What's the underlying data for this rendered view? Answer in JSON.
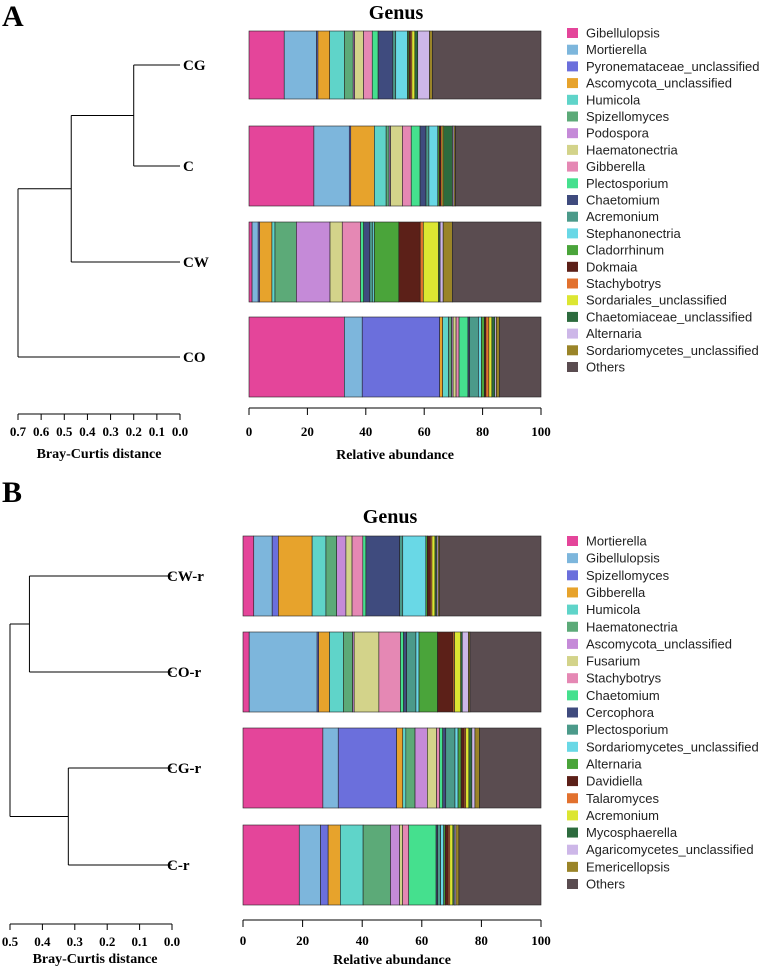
{
  "chart_data": [
    {
      "panel": "A",
      "type": "bar",
      "orientation": "horizontal",
      "stacked": true,
      "title": "Genus",
      "xlabel": "Relative abundance",
      "xlim": [
        0,
        100
      ],
      "xticks": [
        "0",
        "20",
        "40",
        "60",
        "80",
        "100"
      ],
      "dendrogram": {
        "xlabel": "Bray-Curtis distance",
        "ticks": [
          "0.7",
          "0.6",
          "0.5",
          "0.4",
          "0.3",
          "0.2",
          "0.1",
          "0.0"
        ],
        "merges": [
          {
            "left": "CG",
            "right": "C",
            "height": 0.2
          },
          {
            "left": "CG+C",
            "right": "CW",
            "height": 0.47
          },
          {
            "left": "CG+C+CW",
            "right": "CO",
            "height": 0.7
          }
        ]
      },
      "samples": [
        "CG",
        "C",
        "CW",
        "CO"
      ],
      "legend": [
        {
          "name": "Gibellulopsis",
          "color": "#e4459a"
        },
        {
          "name": "Mortierella",
          "color": "#7db6dc"
        },
        {
          "name": "Pyronemataceae_unclassified",
          "color": "#6b6fdc"
        },
        {
          "name": "Ascomycota_unclassified",
          "color": "#e7a32c"
        },
        {
          "name": "Humicola",
          "color": "#5fd4c9"
        },
        {
          "name": "Spizellomyces",
          "color": "#5caa78"
        },
        {
          "name": "Podospora",
          "color": "#c58ad8"
        },
        {
          "name": "Haematonectria",
          "color": "#d3d38a"
        },
        {
          "name": "Gibberella",
          "color": "#e588b4"
        },
        {
          "name": "Plectosporium",
          "color": "#45e08e"
        },
        {
          "name": "Chaetomium",
          "color": "#3f4b7e"
        },
        {
          "name": "Acremonium",
          "color": "#4b9a8a"
        },
        {
          "name": "Stephanonectria",
          "color": "#69d8e6"
        },
        {
          "name": "Cladorrhinum",
          "color": "#4aa43a"
        },
        {
          "name": "Dokmaia",
          "color": "#5c2018"
        },
        {
          "name": "Stachybotrys",
          "color": "#e2712e"
        },
        {
          "name": "Sordariales_unclassified",
          "color": "#dce632"
        },
        {
          "name": "Chaetomiaceae_unclassified",
          "color": "#2d6b3e"
        },
        {
          "name": "Alternaria",
          "color": "#cdb7e8"
        },
        {
          "name": "Sordariomycetes_unclassified",
          "color": "#9a8428"
        },
        {
          "name": "Others",
          "color": "#5a4c50"
        }
      ],
      "series_values": {
        "CG": [
          12,
          11,
          0.5,
          4,
          5,
          3,
          0.5,
          3,
          3,
          2,
          5,
          1,
          4,
          0.5,
          0.5,
          0.5,
          1,
          1,
          4,
          1,
          37
        ],
        "C": [
          22,
          12,
          0.5,
          8,
          4,
          1,
          0.5,
          4,
          3,
          3,
          2,
          1,
          3,
          0.5,
          0.5,
          0.5,
          0.5,
          3,
          0.5,
          0.5,
          29
        ],
        "CW": [
          1,
          2,
          0.5,
          4,
          1,
          7,
          11,
          4,
          6,
          1,
          2,
          1,
          0.5,
          8,
          7,
          1,
          5,
          0.5,
          1,
          3,
          29
        ],
        "CO": [
          32,
          6,
          26,
          1,
          2,
          1,
          0.5,
          1,
          1,
          3,
          0.5,
          3,
          1,
          1,
          0.5,
          1,
          1,
          1,
          0.5,
          1,
          14
        ]
      }
    },
    {
      "panel": "B",
      "type": "bar",
      "orientation": "horizontal",
      "stacked": true,
      "title": "Genus",
      "xlabel": "Relative abundance",
      "xlim": [
        0,
        100
      ],
      "xticks": [
        "0",
        "20",
        "40",
        "60",
        "80",
        "100"
      ],
      "dendrogram": {
        "xlabel": "Bray-Curtis distance",
        "ticks": [
          "0.5",
          "0.4",
          "0.3",
          "0.2",
          "0.1",
          "0.0"
        ],
        "merges": [
          {
            "left": "CW-r",
            "right": "CO-r",
            "height": 0.44
          },
          {
            "left": "CG-r",
            "right": "C-r",
            "height": 0.32
          },
          {
            "left": "CW-r+CO-r",
            "right": "CG-r+C-r",
            "height": 0.5
          }
        ]
      },
      "samples": [
        "CW-r",
        "CO-r",
        "CG-r",
        "C-r"
      ],
      "legend": [
        {
          "name": "Mortierella",
          "color": "#e4459a"
        },
        {
          "name": "Gibellulopsis",
          "color": "#7db6dc"
        },
        {
          "name": "Spizellomyces",
          "color": "#6b6fdc"
        },
        {
          "name": "Gibberella",
          "color": "#e7a32c"
        },
        {
          "name": "Humicola",
          "color": "#5fd4c9"
        },
        {
          "name": "Haematonectria",
          "color": "#5caa78"
        },
        {
          "name": "Ascomycota_unclassified",
          "color": "#c58ad8"
        },
        {
          "name": "Fusarium",
          "color": "#d3d38a"
        },
        {
          "name": "Stachybotrys",
          "color": "#e588b4"
        },
        {
          "name": "Chaetomium",
          "color": "#45e08e"
        },
        {
          "name": "Cercophora",
          "color": "#3f4b7e"
        },
        {
          "name": "Plectosporium",
          "color": "#4b9a8a"
        },
        {
          "name": "Sordariomycetes_unclassified",
          "color": "#69d8e6"
        },
        {
          "name": "Alternaria",
          "color": "#4aa43a"
        },
        {
          "name": "Davidiella",
          "color": "#5c2018"
        },
        {
          "name": "Talaromyces",
          "color": "#e2712e"
        },
        {
          "name": "Acremonium",
          "color": "#dce632"
        },
        {
          "name": "Mycosphaerella",
          "color": "#2d6b3e"
        },
        {
          "name": "Agaricomycetes_unclassified",
          "color": "#cdb7e8"
        },
        {
          "name": "Emericellopsis",
          "color": "#9a8428"
        },
        {
          "name": "Others",
          "color": "#5a4c50"
        }
      ],
      "series_values": {
        "CW-r": [
          3.5,
          6,
          2,
          11,
          4.5,
          3.5,
          3,
          2,
          3.5,
          1,
          11,
          1,
          7.5,
          0.5,
          1,
          0.5,
          1,
          0.5,
          0.5,
          0.5,
          33
        ],
        "CO-r": [
          2,
          22,
          0.5,
          3.5,
          4.5,
          3,
          0.5,
          8,
          7,
          1,
          1,
          3,
          1,
          6,
          5,
          0.5,
          2,
          0.5,
          2,
          0.5,
          23
        ],
        "CG-r": [
          26,
          5,
          19,
          2,
          1,
          3,
          4,
          3,
          1,
          1,
          1,
          3,
          1,
          1,
          1,
          0.5,
          1,
          1,
          1,
          1.5,
          20
        ],
        "C-r": [
          18.5,
          7,
          2.5,
          4,
          7.5,
          9,
          3,
          1,
          2,
          9,
          0.5,
          1,
          1,
          0.5,
          1,
          0.5,
          1,
          0.5,
          0.5,
          1,
          27
        ]
      }
    }
  ]
}
